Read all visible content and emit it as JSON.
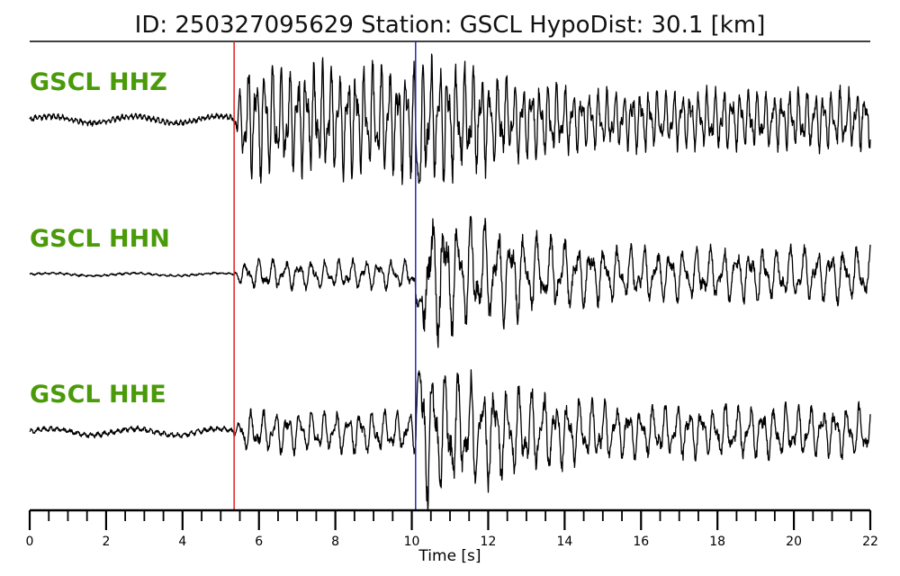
{
  "chart_data": {
    "type": "line",
    "title": "ID: 250327095629   Station: GSCL   HypoDist:    30.1 [km]",
    "event_id": "250327095629",
    "station": "GSCL",
    "hypodist_km": 30.1,
    "xlabel": "Time [s]",
    "ylabel": "",
    "xlim": [
      0,
      22
    ],
    "x_major_ticks": [
      "0",
      "2",
      "4",
      "6",
      "8",
      "10",
      "12",
      "14",
      "16",
      "18",
      "20",
      "22"
    ],
    "x_minor_step": 0.5,
    "grid": false,
    "label_color": "#4a9a0a",
    "trace_color": "#000000",
    "picks": [
      {
        "phase": "P",
        "time": 5.35,
        "color": "#e02020"
      },
      {
        "phase": "S",
        "time": 10.1,
        "color": "#2a2aa8"
      }
    ],
    "series": [
      {
        "name": "GSCL HHZ",
        "component": "HHZ",
        "pre_amp": 0.08,
        "p_amp": 0.85,
        "s_amp": 1.0,
        "coda_amp": 0.45,
        "dominant_period_s": 0.22
      },
      {
        "name": "GSCL HHN",
        "component": "HHN",
        "pre_amp": 0.03,
        "p_amp": 0.22,
        "s_amp": 1.0,
        "coda_amp": 0.4,
        "dominant_period_s": 0.35
      },
      {
        "name": "GSCL HHE",
        "component": "HHE",
        "pre_amp": 0.07,
        "p_amp": 0.3,
        "s_amp": 1.0,
        "coda_amp": 0.38,
        "dominant_period_s": 0.32
      }
    ]
  }
}
